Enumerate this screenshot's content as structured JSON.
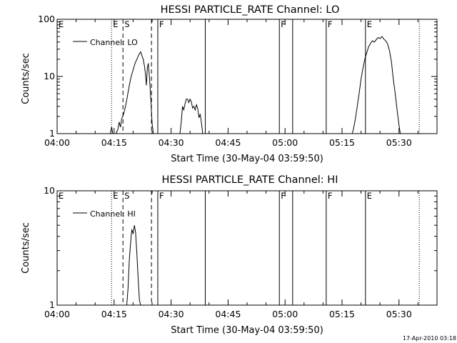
{
  "footer_stamp": "17-Apr-2010 03:18",
  "chart_data": [
    {
      "type": "line",
      "title": "HESSI PARTICLE_RATE Channel: LO",
      "xlabel": "Start Time (30-May-04 03:59:50)",
      "ylabel": "Counts/sec",
      "yscale": "log",
      "xlim": [
        "04:00",
        "05:40"
      ],
      "ylim": [
        1,
        100
      ],
      "xticks": [
        "04:00",
        "04:15",
        "04:30",
        "04:45",
        "05:00",
        "05:15",
        "05:30"
      ],
      "yticks": [
        {
          "value": 1,
          "label": "1"
        },
        {
          "value": 10,
          "label": "10"
        },
        {
          "value": 100,
          "label": "100"
        }
      ],
      "legend": {
        "position": "top-left",
        "entries": [
          "Channel: LO"
        ]
      },
      "series": [
        {
          "name": "Channel: LO",
          "segments": [
            [
              [
                "04:14:00",
                1
              ],
              [
                "04:14:20",
                1.3
              ],
              [
                "04:14:40",
                1
              ],
              [
                "04:15:00",
                1
              ],
              [
                "04:15:30",
                1
              ],
              [
                "04:16:00",
                1.2
              ],
              [
                "04:16:20",
                1.6
              ],
              [
                "04:16:40",
                1.3
              ],
              [
                "04:17:00",
                1.8
              ],
              [
                "04:17:30",
                2.2
              ],
              [
                "04:18:00",
                3
              ],
              [
                "04:18:30",
                4.5
              ],
              [
                "04:19:00",
                7
              ],
              [
                "04:19:30",
                10
              ],
              [
                "04:20:00",
                13
              ],
              [
                "04:20:30",
                17
              ],
              [
                "04:21:00",
                20
              ],
              [
                "04:21:30",
                24
              ],
              [
                "04:22:00",
                27
              ],
              [
                "04:22:20",
                23
              ],
              [
                "04:22:40",
                20
              ],
              [
                "04:23:00",
                15
              ],
              [
                "04:23:15",
                11
              ],
              [
                "04:23:30",
                7
              ],
              [
                "04:23:45",
                14
              ],
              [
                "04:24:00",
                17
              ],
              [
                "04:24:20",
                9
              ],
              [
                "04:24:40",
                4
              ],
              [
                "04:25:00",
                1.5
              ],
              [
                "04:25:20",
                1
              ]
            ],
            [
              [
                "04:32:20",
                1
              ],
              [
                "04:32:40",
                1.6
              ],
              [
                "04:33:00",
                3
              ],
              [
                "04:33:20",
                2.6
              ],
              [
                "04:33:40",
                3.3
              ],
              [
                "04:34:00",
                4
              ],
              [
                "04:34:20",
                4
              ],
              [
                "04:34:40",
                3.5
              ],
              [
                "04:35:00",
                4
              ],
              [
                "04:35:20",
                3.6
              ],
              [
                "04:35:40",
                2.8
              ],
              [
                "04:36:00",
                3
              ],
              [
                "04:36:20",
                2.6
              ],
              [
                "04:36:40",
                3.2
              ],
              [
                "04:37:00",
                2.8
              ],
              [
                "04:37:20",
                1.9
              ],
              [
                "04:37:40",
                2.2
              ],
              [
                "04:38:00",
                1.5
              ],
              [
                "04:38:20",
                1
              ]
            ],
            [
              [
                "05:17:40",
                1
              ],
              [
                "05:18:00",
                1.2
              ],
              [
                "05:18:30",
                1.8
              ],
              [
                "05:19:00",
                3
              ],
              [
                "05:19:30",
                5
              ],
              [
                "05:20:00",
                9
              ],
              [
                "05:20:30",
                14
              ],
              [
                "05:21:00",
                20
              ],
              [
                "05:21:30",
                26
              ],
              [
                "05:22:00",
                33
              ],
              [
                "05:22:30",
                38
              ],
              [
                "05:23:00",
                42
              ],
              [
                "05:23:30",
                40
              ],
              [
                "05:24:00",
                44
              ],
              [
                "05:24:30",
                48
              ],
              [
                "05:25:00",
                46
              ],
              [
                "05:25:30",
                50
              ],
              [
                "05:26:00",
                45
              ],
              [
                "05:26:30",
                42
              ],
              [
                "05:27:00",
                37
              ],
              [
                "05:27:30",
                28
              ],
              [
                "05:28:00",
                18
              ],
              [
                "05:28:30",
                9
              ],
              [
                "05:29:00",
                5
              ],
              [
                "05:29:30",
                2.6
              ],
              [
                "05:30:00",
                1.4
              ],
              [
                "05:30:20",
                1
              ]
            ]
          ]
        }
      ],
      "markers": [
        {
          "time": "04:14:20",
          "style": "dotted",
          "label": "E"
        },
        {
          "time": "04:17:20",
          "style": "dashed",
          "label": "S"
        },
        {
          "time": "04:24:50",
          "style": "dashed",
          "label": ""
        },
        {
          "time": "04:26:30",
          "style": "solid",
          "label": "F"
        },
        {
          "time": "04:39:00",
          "style": "solid",
          "label": ""
        },
        {
          "time": "04:58:30",
          "style": "solid",
          "label": "F"
        },
        {
          "time": "05:02:00",
          "style": "solid",
          "label": ""
        },
        {
          "time": "05:10:50",
          "style": "solid",
          "label": "F"
        },
        {
          "time": "05:21:10",
          "style": "solid",
          "label": "E"
        },
        {
          "time": "05:35:20",
          "style": "dotted",
          "label": ""
        }
      ],
      "edge_label": "E"
    },
    {
      "type": "line",
      "title": "HESSI PARTICLE_RATE Channel: HI",
      "xlabel": "Start Time (30-May-04 03:59:50)",
      "ylabel": "Counts/sec",
      "yscale": "log",
      "xlim": [
        "04:00",
        "05:40"
      ],
      "ylim": [
        1,
        10
      ],
      "xticks": [
        "04:00",
        "04:15",
        "04:30",
        "04:45",
        "05:00",
        "05:15",
        "05:30"
      ],
      "yticks": [
        {
          "value": 1,
          "label": "1"
        },
        {
          "value": 10,
          "label": "10"
        }
      ],
      "legend": {
        "position": "top-left",
        "entries": [
          "Channel: HI"
        ]
      },
      "series": [
        {
          "name": "Channel: HI",
          "segments": [
            [
              [
                "04:18:20",
                1
              ],
              [
                "04:18:40",
                1.4
              ],
              [
                "04:19:00",
                2.5
              ],
              [
                "04:19:20",
                3.5
              ],
              [
                "04:19:40",
                4.6
              ],
              [
                "04:20:00",
                4.2
              ],
              [
                "04:20:20",
                5
              ],
              [
                "04:20:40",
                4.3
              ],
              [
                "04:21:00",
                2.8
              ],
              [
                "04:21:20",
                1.7
              ],
              [
                "04:21:40",
                1.1
              ],
              [
                "04:22:00",
                1
              ]
            ]
          ]
        }
      ],
      "markers": [
        {
          "time": "04:14:20",
          "style": "dotted",
          "label": "E"
        },
        {
          "time": "04:17:20",
          "style": "dashed",
          "label": "S"
        },
        {
          "time": "04:24:50",
          "style": "dashed",
          "label": ""
        },
        {
          "time": "04:26:30",
          "style": "solid",
          "label": "F"
        },
        {
          "time": "04:39:00",
          "style": "solid",
          "label": ""
        },
        {
          "time": "04:58:30",
          "style": "solid",
          "label": "F"
        },
        {
          "time": "05:02:00",
          "style": "solid",
          "label": ""
        },
        {
          "time": "05:10:50",
          "style": "solid",
          "label": "F"
        },
        {
          "time": "05:21:10",
          "style": "solid",
          "label": "E"
        },
        {
          "time": "05:35:20",
          "style": "dotted",
          "label": ""
        }
      ],
      "edge_label": "E"
    }
  ]
}
